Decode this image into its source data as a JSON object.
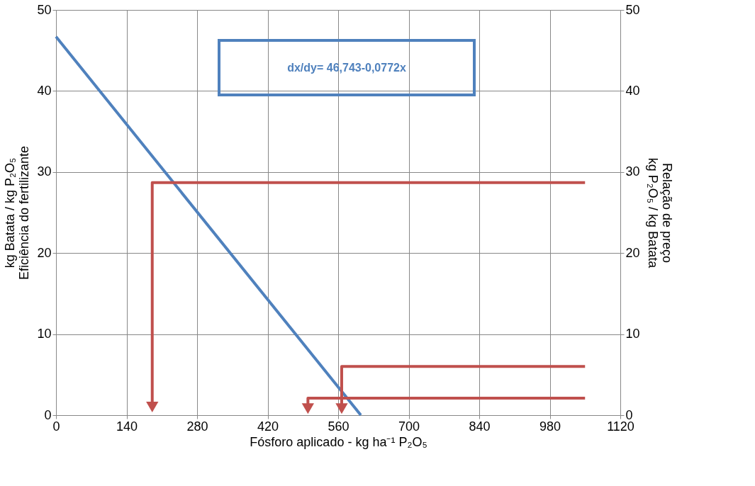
{
  "chart_data": {
    "type": "line",
    "xlabel": "Fósforo aplicado - kg ha⁻¹ P₂O₅",
    "ylabel": "kg Batata / kg P₂O₅\nEficiência do fertilizante",
    "y2label": "Relação de preço\nkg P₂O₅ / kg Batata",
    "annotations": [
      "dx/dy= 46,743-0,0772x"
    ],
    "xlim": [
      0,
      1120
    ],
    "xticks": [
      0,
      140,
      280,
      420,
      560,
      700,
      840,
      980,
      1120
    ],
    "ylim": [
      0,
      50
    ],
    "yticks": [
      0,
      10,
      20,
      30,
      40,
      50
    ],
    "y2lim": [
      0,
      50
    ],
    "y2ticks": [
      0,
      10,
      20,
      30,
      40,
      50
    ],
    "grid": true,
    "line_style": "solid",
    "series": [
      {
        "color": "#4f81bd",
        "x": [
          0,
          605
        ],
        "values": [
          46.7,
          0
        ]
      },
      {
        "color": "#c0504d",
        "axis": "y2",
        "x": [
          1050,
          191,
          191
        ],
        "values": [
          28.7,
          28.7,
          1
        ]
      },
      {
        "color": "#c0504d",
        "axis": "y2",
        "x": [
          1050,
          567,
          567
        ],
        "values": [
          6.0,
          6.0,
          0.8
        ]
      },
      {
        "color": "#c0504d",
        "axis": "y2",
        "x": [
          1050,
          500,
          500
        ],
        "values": [
          2.1,
          2.1,
          0.8
        ]
      }
    ]
  }
}
